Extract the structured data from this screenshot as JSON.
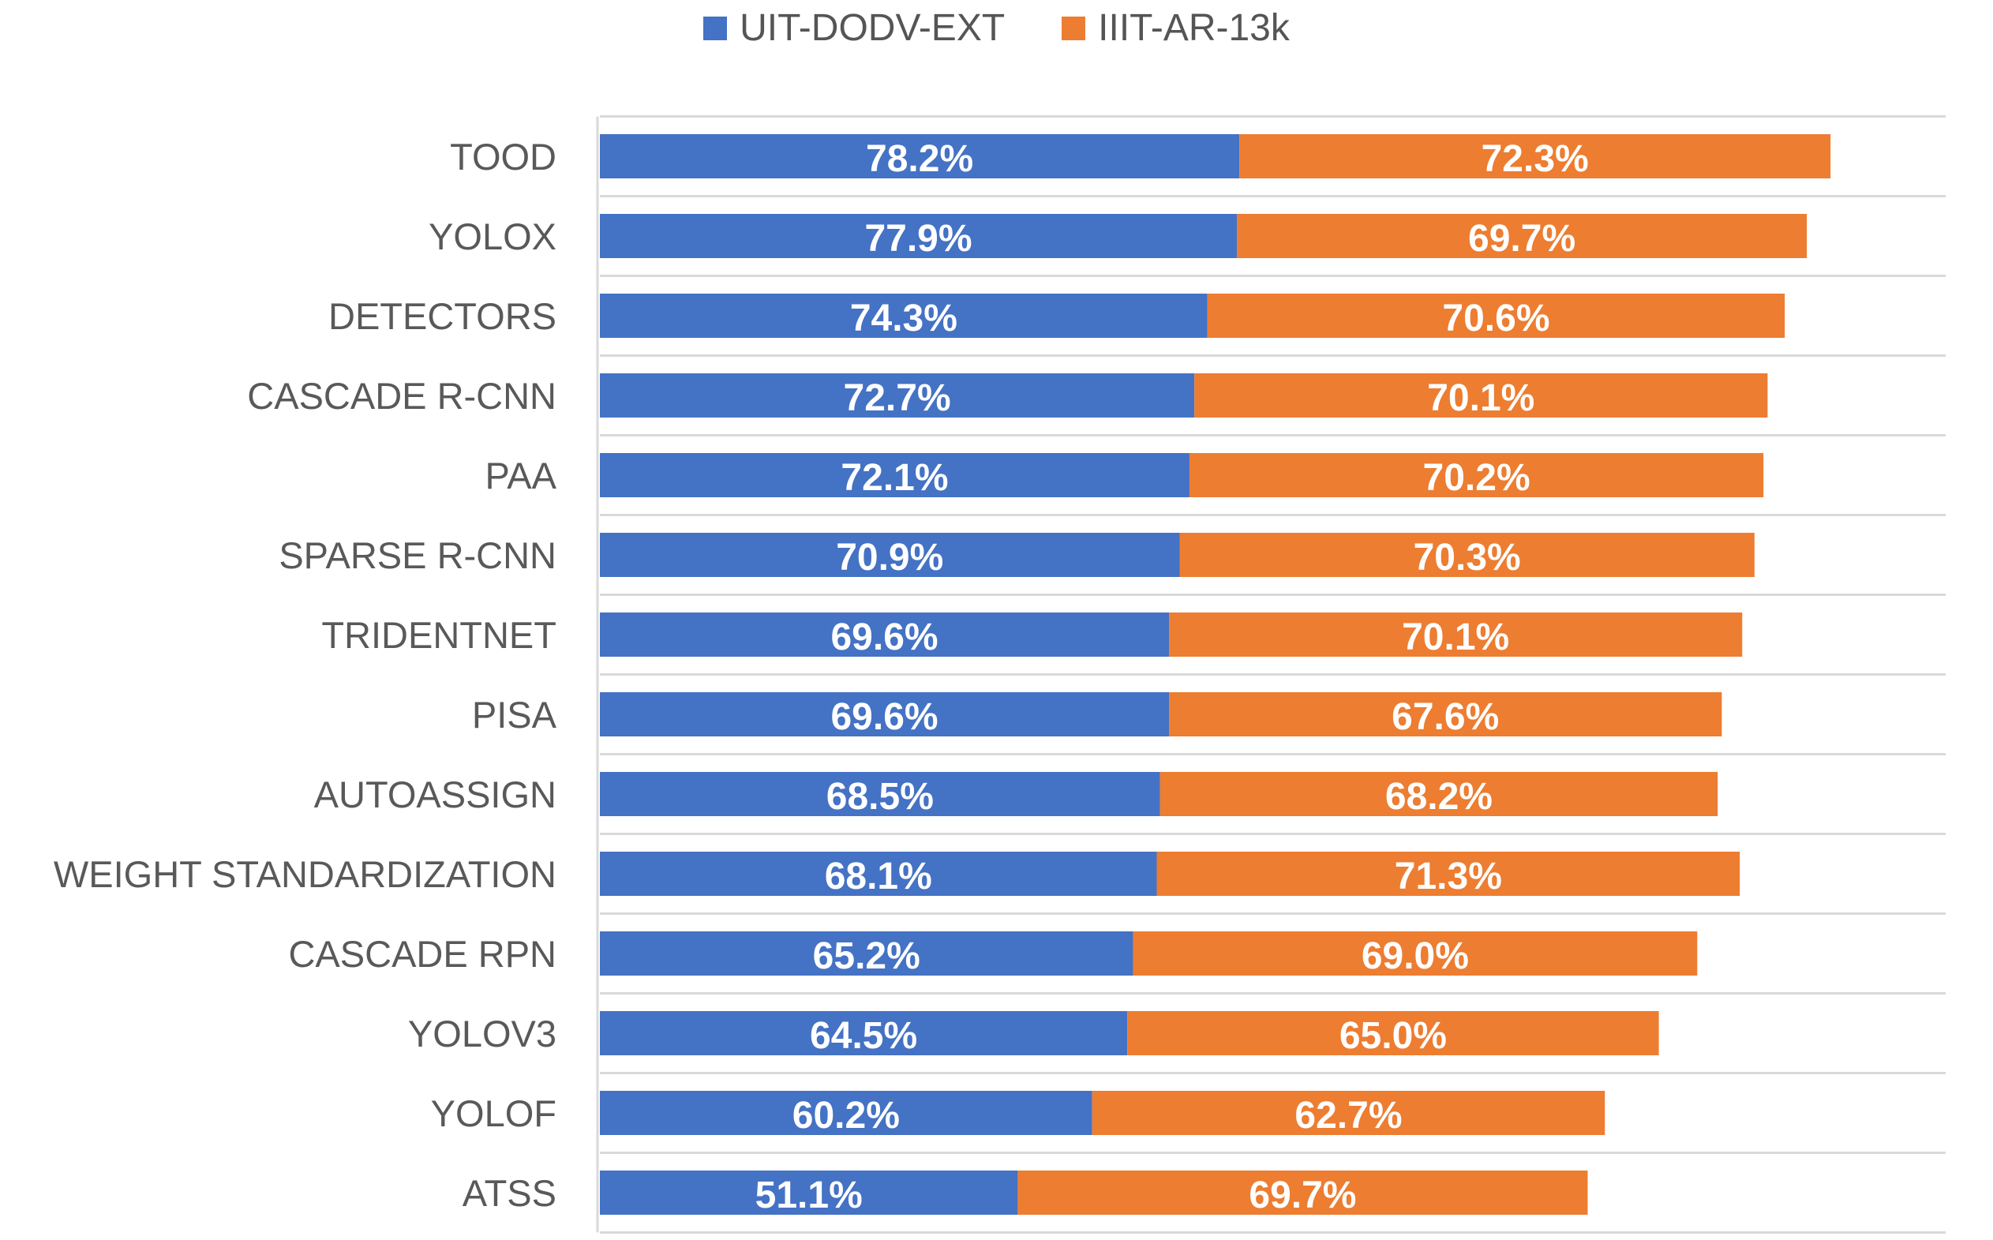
{
  "chart_data": {
    "type": "bar",
    "orientation": "horizontal",
    "stacked": true,
    "categories": [
      "TOOD",
      "YOLOX",
      "DETECTORS",
      "CASCADE R-CNN",
      "PAA",
      "SPARSE R-CNN",
      "TRIDENTNET",
      "PISA",
      "AUTOASSIGN",
      "WEIGHT STANDARDIZATION",
      "CASCADE RPN",
      "YOLOV3",
      "YOLOF",
      "ATSS"
    ],
    "series": [
      {
        "name": "UIT-DODV-EXT",
        "color": "#4472c4",
        "values": [
          78.2,
          77.9,
          74.3,
          72.7,
          72.1,
          70.9,
          69.6,
          69.6,
          68.5,
          68.1,
          65.2,
          64.5,
          60.2,
          51.1
        ],
        "labels": [
          "78.2%",
          "77.9%",
          "74.3%",
          "72.7%",
          "72.1%",
          "70.9%",
          "69.6%",
          "69.6%",
          "68.5%",
          "68.1%",
          "65.2%",
          "64.5%",
          "60.2%",
          "51.1%"
        ]
      },
      {
        "name": "IIIT-AR-13k",
        "color": "#ed7d31",
        "values": [
          72.3,
          69.7,
          70.6,
          70.1,
          70.2,
          70.3,
          70.1,
          67.6,
          68.2,
          71.3,
          69.0,
          65.0,
          62.7,
          69.7
        ],
        "labels": [
          "72.3%",
          "69.7%",
          "70.6%",
          "70.1%",
          "70.2%",
          "70.3%",
          "70.1%",
          "67.6%",
          "68.2%",
          "71.3%",
          "69.0%",
          "65.0%",
          "62.7%",
          "69.7%"
        ]
      }
    ],
    "xlim": [
      0,
      160
    ],
    "grid": true,
    "legend": "top-center"
  }
}
